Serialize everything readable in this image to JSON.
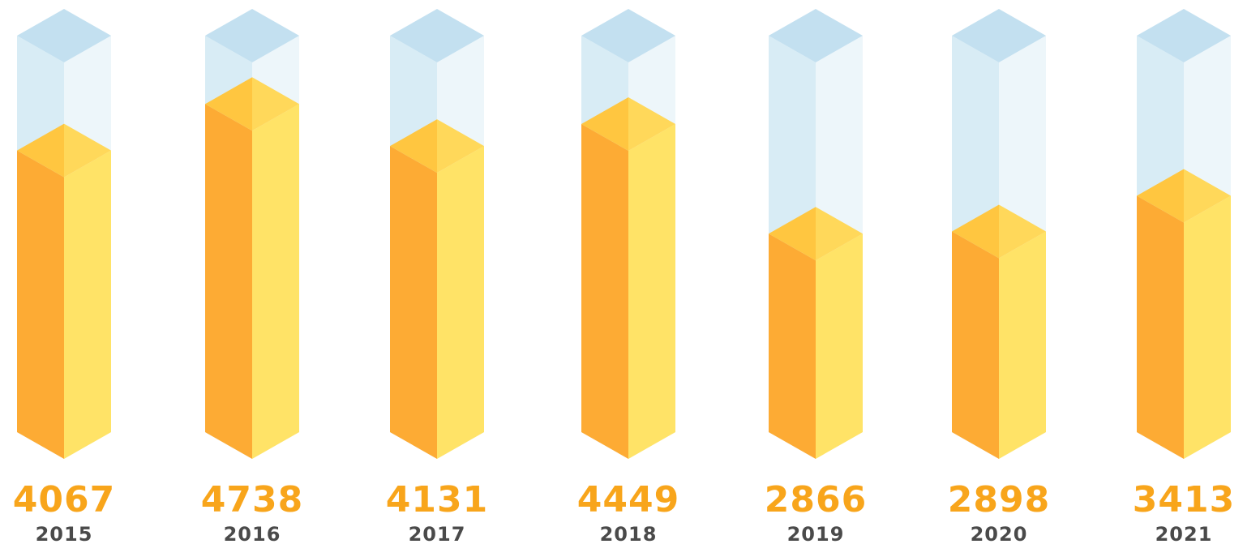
{
  "chart_data": {
    "type": "bar",
    "title": "",
    "xlabel": "",
    "ylabel": "",
    "categories": [
      "2015",
      "2016",
      "2017",
      "2018",
      "2019",
      "2020",
      "2021"
    ],
    "values": [
      4067,
      4738,
      4131,
      4449,
      2866,
      2898,
      3413
    ],
    "value_labels": [
      "4067",
      "4738",
      "4131",
      "4449",
      "2866",
      "2898",
      "3413"
    ],
    "ylim": [
      0,
      5725
    ],
    "grid": false,
    "legend": "none",
    "style": "isometric-3d-columns"
  },
  "colors": {
    "bar_left_face": "#FDAB34",
    "bar_right_face": "#FFE367",
    "bar_top_left": "#FFC640",
    "bar_top_right": "#FFD85A",
    "glass_left_face": "#D8ECF5",
    "glass_right_face": "#EDF6FA",
    "glass_top": "#C3E0F0",
    "value_text": "#F8A51B",
    "year_text": "#4A4A4A"
  }
}
